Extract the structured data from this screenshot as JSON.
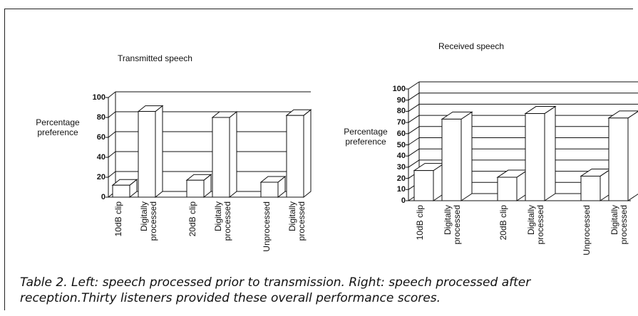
{
  "caption": "Table 2. Left: speech processed prior to transmission. Right: speech processed after reception.Thirty listeners provided these overall performance scores.",
  "chart_data": [
    {
      "type": "bar",
      "title": "Transmitted speech",
      "y_label": "Percentage preference",
      "categories": [
        "10dB clip",
        "Digitally processed",
        "20dB clip",
        "Digitally processed",
        "Unprocessed",
        "Digitally processed"
      ],
      "values": [
        12,
        86,
        17,
        80,
        15,
        82
      ],
      "color": "#ffffff",
      "ylim": [
        0,
        100
      ],
      "yticks": [
        0,
        20,
        40,
        60,
        80,
        100
      ],
      "grid": true
    },
    {
      "type": "bar",
      "title": "Received speech",
      "y_label": "Percentage preference",
      "categories": [
        "10dB clip",
        "Digitally processed",
        "20dB clip",
        "Digitally processed",
        "Unprocessed",
        "Digitally processed"
      ],
      "values": [
        27,
        73,
        21,
        78,
        22,
        74
      ],
      "color": "#ffffff",
      "ylim": [
        0,
        100
      ],
      "yticks": [
        0,
        10,
        20,
        30,
        40,
        50,
        60,
        70,
        80,
        90,
        100
      ],
      "grid": true
    }
  ]
}
